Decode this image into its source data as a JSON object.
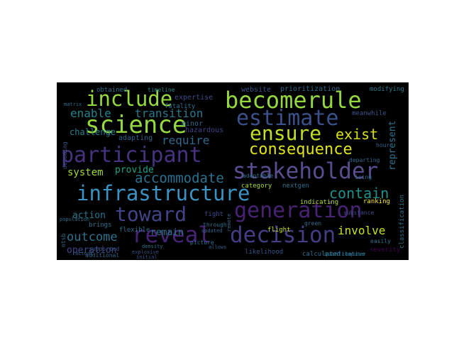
{
  "wordcloud": {
    "background": "#000000",
    "words": [
      {
        "text": "include",
        "color": "#95d840"
      },
      {
        "text": "becomerule",
        "color": "#95d840"
      },
      {
        "text": "science",
        "color": "#95d840"
      },
      {
        "text": "estimate",
        "color": "#3b518b"
      },
      {
        "text": "ensure",
        "color": "#c2df23"
      },
      {
        "text": "participant",
        "color": "#46327e"
      },
      {
        "text": "stakeholder",
        "color": "#5b4d8f"
      },
      {
        "text": "consequence",
        "color": "#dde318"
      },
      {
        "text": "infrastructure",
        "color": "#3a93c3"
      },
      {
        "text": "generation",
        "color": "#482374"
      },
      {
        "text": "toward",
        "color": "#414487"
      },
      {
        "text": "reveal",
        "color": "#482475"
      },
      {
        "text": "decision",
        "color": "#433d84"
      },
      {
        "text": "contain",
        "color": "#21918c"
      },
      {
        "text": "accommodate",
        "color": "#2c728e"
      },
      {
        "text": "exist",
        "color": "#d8e219"
      },
      {
        "text": "transition",
        "color": "#2a788e"
      },
      {
        "text": "enable",
        "color": "#26828e"
      },
      {
        "text": "require",
        "color": "#31688e"
      },
      {
        "text": "represent",
        "color": "#2d708e"
      },
      {
        "text": "system",
        "color": "#a0da39"
      },
      {
        "text": "provide",
        "color": "#1fa187"
      },
      {
        "text": "outcome",
        "color": "#2c728e"
      },
      {
        "text": "involve",
        "color": "#c8e020"
      },
      {
        "text": "operation",
        "color": "#3e4a89"
      },
      {
        "text": "action",
        "color": "#2a788e"
      },
      {
        "text": "remain",
        "color": "#2a788e"
      },
      {
        "text": "challenge",
        "color": "#27808e"
      },
      {
        "text": "adapting",
        "color": "#33638d"
      },
      {
        "text": "expertise",
        "color": "#3e4c8a"
      },
      {
        "text": "fatality",
        "color": "#2d708e"
      },
      {
        "text": "minor",
        "color": "#31688e"
      },
      {
        "text": "hazardous",
        "color": "#414487"
      },
      {
        "text": "timeline",
        "color": "#25848e"
      },
      {
        "text": "obtained",
        "color": "#2e6e8e"
      },
      {
        "text": "website",
        "color": "#3b528b"
      },
      {
        "text": "prioritization",
        "color": "#31688e"
      },
      {
        "text": "modifying",
        "color": "#2a788e"
      },
      {
        "text": "category",
        "color": "#a5db36"
      },
      {
        "text": "nextgen",
        "color": "#2d708e"
      },
      {
        "text": "ranking",
        "color": "#fde725"
      },
      {
        "text": "indicating",
        "color": "#b5de2b"
      },
      {
        "text": "flight",
        "color": "#d0e11c"
      },
      {
        "text": "fight",
        "color": "#3e4a89"
      },
      {
        "text": "brings",
        "color": "#2c728e"
      },
      {
        "text": "flexible",
        "color": "#2d708e"
      },
      {
        "text": "severity",
        "color": "#440154"
      },
      {
        "text": "likelihood",
        "color": "#3b528b"
      },
      {
        "text": "calculated",
        "color": "#2e6e8e"
      },
      {
        "text": "classification",
        "color": "#2c728e"
      },
      {
        "text": "meanwhile",
        "color": "#3b528b"
      },
      {
        "text": "departing",
        "color": "#31688e"
      },
      {
        "text": "adaptable",
        "color": "#2c728e"
      },
      {
        "text": "picture",
        "color": "#2d708e"
      },
      {
        "text": "additional",
        "color": "#33638d"
      },
      {
        "text": "supported",
        "color": "#3b518b"
      },
      {
        "text": "decoding",
        "color": "#3b528b"
      },
      {
        "text": "ntsb",
        "color": "#2c728e"
      },
      {
        "text": "green",
        "color": "#2d708e"
      },
      {
        "text": "hour",
        "color": "#33638d"
      },
      {
        "text": "quantitative",
        "color": "#2a788e"
      },
      {
        "text": "computer",
        "color": "#31688e"
      },
      {
        "text": "easily",
        "color": "#2c728e"
      },
      {
        "text": "substance",
        "color": "#3e4a89"
      },
      {
        "text": "remote",
        "color": "#31688e"
      },
      {
        "text": "explosive",
        "color": "#3b528b"
      },
      {
        "text": "through",
        "color": "#2d708e"
      },
      {
        "text": "icing",
        "color": "#2c728e"
      },
      {
        "text": "actual",
        "color": "#33638d"
      },
      {
        "text": "population",
        "color": "#2d708e"
      },
      {
        "text": "initial",
        "color": "#3b528b"
      },
      {
        "text": "density",
        "color": "#2c728e"
      },
      {
        "text": "matrix",
        "color": "#2d708e"
      },
      {
        "text": "updated",
        "color": "#31688e"
      },
      {
        "text": "allows",
        "color": "#33638d"
      }
    ]
  }
}
